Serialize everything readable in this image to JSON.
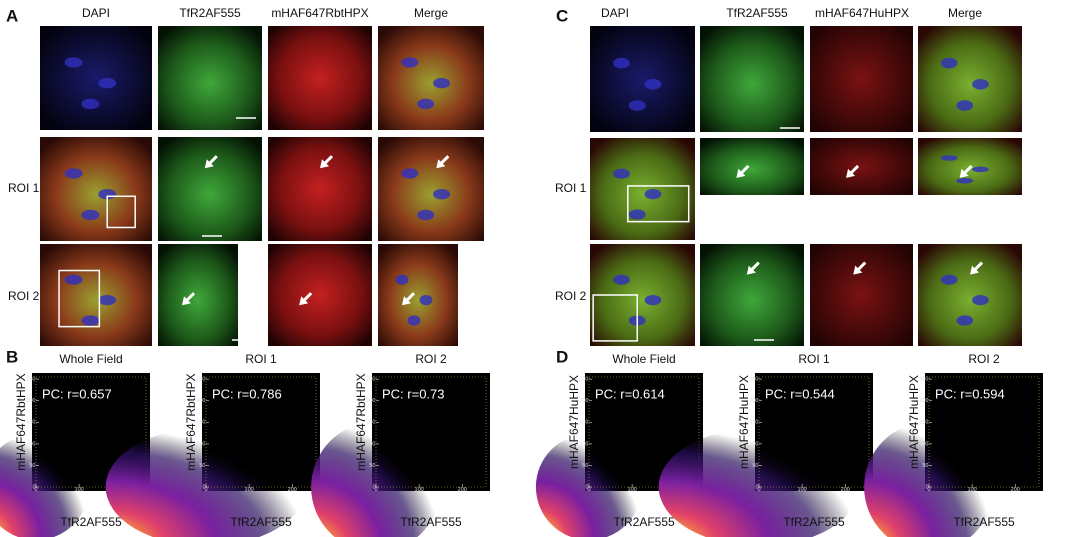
{
  "panel_a": {
    "letter": "A",
    "columns": [
      "DAPI",
      "TfR2AF555",
      "mHAF647RbtHPX",
      "Merge"
    ],
    "rows": [
      "ROI 1",
      "ROI 2"
    ]
  },
  "panel_b": {
    "letter": "B",
    "ylabel": "mHAF647RbtHPX",
    "xlabel": "TfR2AF555",
    "plots": [
      {
        "title": "Whole Field",
        "annotation": "PC: r=0.657"
      },
      {
        "title": "ROI 1",
        "annotation": "PC: r=0.786"
      },
      {
        "title": "ROI 2",
        "annotation": "PC: r=0.73"
      }
    ]
  },
  "panel_c": {
    "letter": "C",
    "columns": [
      "DAPI",
      "TfR2AF555",
      "mHAF647HuHPX",
      "Merge"
    ],
    "rows": [
      "ROI 1",
      "ROI 2"
    ]
  },
  "panel_d": {
    "letter": "D",
    "ylabel": "mHAF647HuHPX",
    "xlabel": "TfR2AF555",
    "plots": [
      {
        "title": "Whole Field",
        "annotation": "PC: r=0.614"
      },
      {
        "title": "ROI 1",
        "annotation": "PC: r=0.544"
      },
      {
        "title": "ROI 2",
        "annotation": "PC: r=0.594"
      }
    ]
  },
  "plot_axes": {
    "xlim": [
      0,
      255
    ],
    "ylim": [
      0,
      255
    ],
    "xticks": [
      0,
      100,
      200
    ],
    "yticks": [
      0,
      50,
      100,
      150,
      200,
      250
    ]
  }
}
